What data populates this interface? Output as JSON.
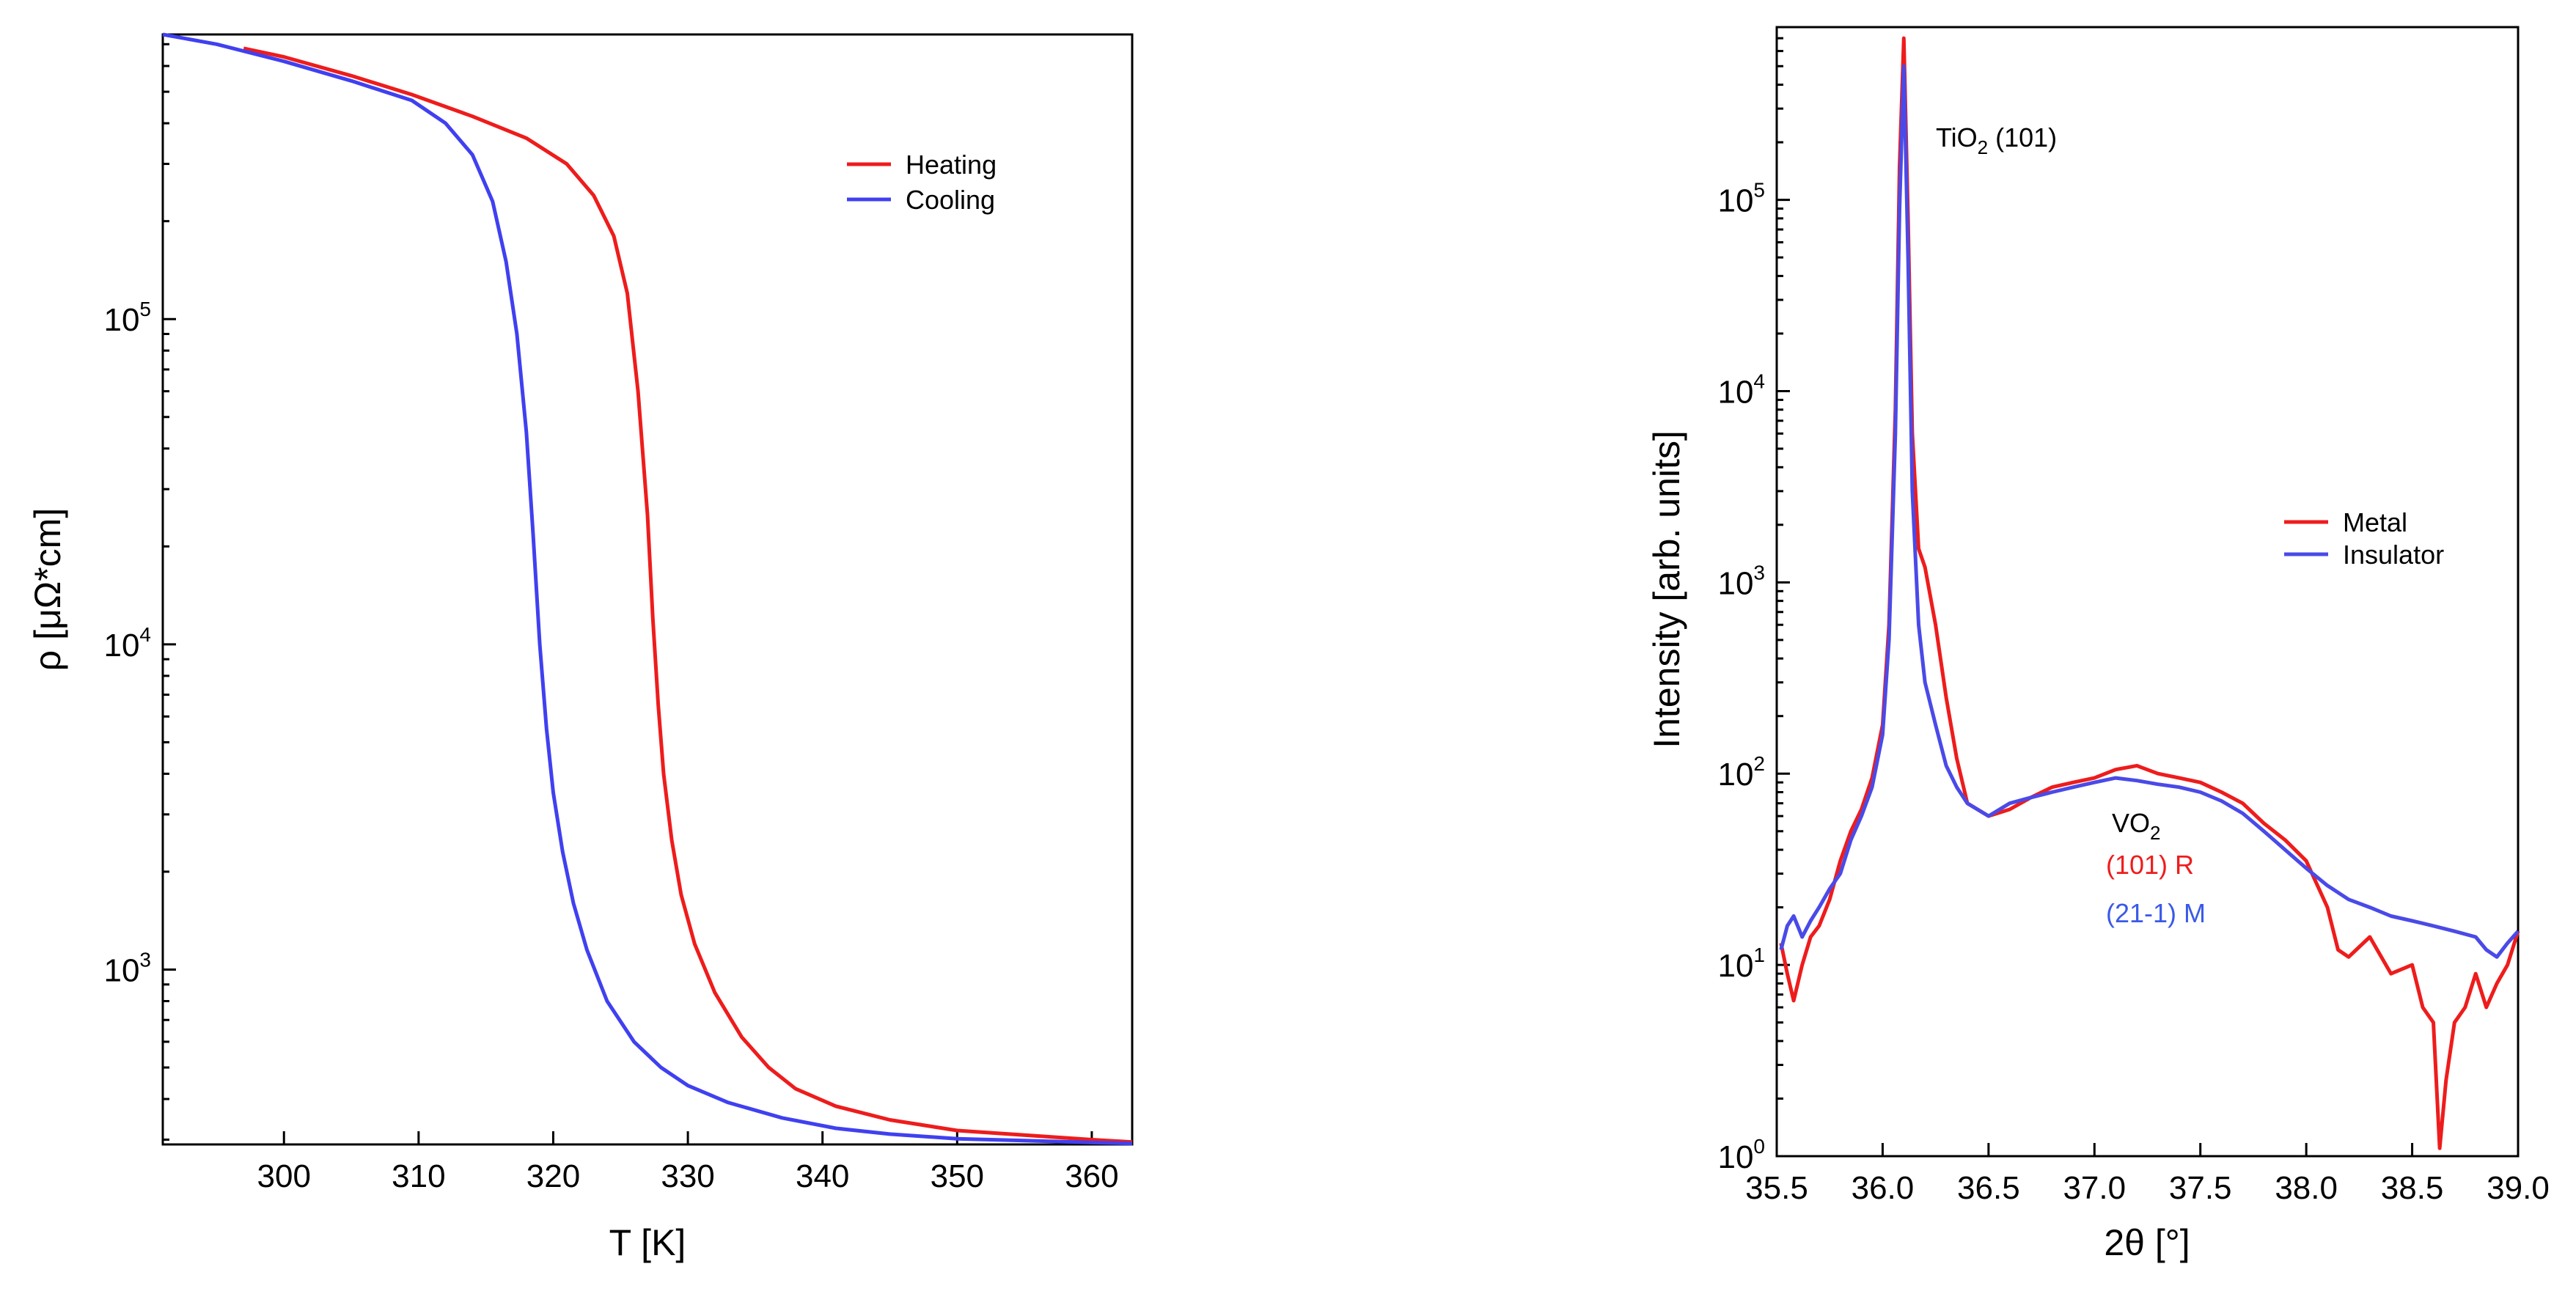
{
  "chart_data": [
    {
      "type": "line",
      "title": "",
      "xlabel": "T [K]",
      "ylabel": "ρ [μΩ*cm]",
      "yscale": "log",
      "xlim": [
        291,
        363
      ],
      "ylim": [
        290,
        750000
      ],
      "xticks": [
        300,
        310,
        320,
        330,
        340,
        350,
        360
      ],
      "yticks": [
        {
          "value": 1000,
          "base": "10",
          "exp": "3"
        },
        {
          "value": 10000,
          "base": "10",
          "exp": "4"
        },
        {
          "value": 100000,
          "base": "10",
          "exp": "5"
        }
      ],
      "legend": {
        "position": "top-right"
      },
      "series": [
        {
          "name": "Heating",
          "color": "#ee1c1c",
          "x": [
            297,
            300,
            305,
            309.5,
            314,
            318,
            321,
            323,
            324.5,
            325.5,
            326.3,
            327,
            327.4,
            327.8,
            328.2,
            328.8,
            329.5,
            330.5,
            332,
            334,
            336,
            338,
            341,
            345,
            350,
            355,
            360,
            363
          ],
          "y": [
            680000,
            640000,
            560000,
            490000,
            420000,
            360000,
            300000,
            240000,
            180000,
            120000,
            60000,
            25000,
            12000,
            6500,
            4000,
            2500,
            1700,
            1200,
            850,
            620,
            500,
            430,
            380,
            345,
            320,
            310,
            300,
            295
          ]
        },
        {
          "name": "Cooling",
          "color": "#4040f0",
          "x": [
            291,
            295,
            300,
            305,
            309.5,
            312,
            314,
            315.5,
            316.5,
            317.3,
            318,
            318.5,
            319,
            319.5,
            320,
            320.7,
            321.5,
            322.5,
            324,
            326,
            328,
            330,
            333,
            337,
            341,
            345,
            350,
            355,
            360,
            363
          ],
          "y": [
            750000,
            700000,
            620000,
            540000,
            470000,
            400000,
            320000,
            230000,
            150000,
            90000,
            45000,
            22000,
            10000,
            5500,
            3500,
            2300,
            1600,
            1150,
            800,
            600,
            500,
            440,
            390,
            350,
            325,
            312,
            302,
            298,
            294,
            292
          ]
        }
      ]
    },
    {
      "type": "line",
      "title": "",
      "xlabel": "2θ [°]",
      "ylabel": "Intensity [arb. units]",
      "yscale": "log",
      "xlim": [
        35.5,
        39.0
      ],
      "ylim": [
        1,
        800000
      ],
      "xticks": [
        "35.5",
        "36.0",
        "36.5",
        "37.0",
        "37.5",
        "38.0",
        "38.5",
        "39.0"
      ],
      "yticks": [
        {
          "value": 1,
          "base": "10",
          "exp": "0"
        },
        {
          "value": 10,
          "base": "10",
          "exp": "1"
        },
        {
          "value": 100,
          "base": "10",
          "exp": "2"
        },
        {
          "value": 1000,
          "base": "10",
          "exp": "3"
        },
        {
          "value": 10000,
          "base": "10",
          "exp": "4"
        },
        {
          "value": 100000,
          "base": "10",
          "exp": "5"
        }
      ],
      "legend": {
        "position": "center-right"
      },
      "annotations": {
        "peak_label": {
          "base": "TiO",
          "sub": "2",
          "rest": " (101)"
        },
        "vo2_label": {
          "base": "VO",
          "sub": "2"
        },
        "metal_phase": "(101) R",
        "insulator_phase": "(21-1) M"
      },
      "series": [
        {
          "name": "Metal",
          "color": "#ee1c1c",
          "x": [
            35.52,
            35.55,
            35.58,
            35.62,
            35.66,
            35.7,
            35.75,
            35.8,
            35.85,
            35.9,
            35.95,
            36.0,
            36.03,
            36.06,
            36.08,
            36.1,
            36.12,
            36.14,
            36.17,
            36.2,
            36.25,
            36.3,
            36.35,
            36.4,
            36.5,
            36.6,
            36.7,
            36.8,
            36.9,
            37.0,
            37.1,
            37.2,
            37.3,
            37.4,
            37.5,
            37.6,
            37.7,
            37.8,
            37.9,
            38.0,
            38.1,
            38.15,
            38.2,
            38.3,
            38.4,
            38.5,
            38.55,
            38.6,
            38.63,
            38.66,
            38.7,
            38.75,
            38.8,
            38.85,
            38.9,
            38.95,
            39.0
          ],
          "y": [
            13,
            9,
            6.5,
            10,
            14,
            16,
            22,
            35,
            50,
            65,
            95,
            180,
            600,
            8000,
            150000,
            700000,
            80000,
            6000,
            1500,
            1200,
            600,
            250,
            120,
            70,
            60,
            65,
            75,
            85,
            90,
            95,
            105,
            110,
            100,
            95,
            90,
            80,
            70,
            55,
            45,
            35,
            20,
            12,
            11,
            14,
            9,
            10,
            6,
            5,
            1.1,
            2.5,
            5,
            6,
            9,
            6,
            8,
            10,
            15
          ]
        },
        {
          "name": "Insulator",
          "color": "#4a4ae8",
          "x": [
            35.52,
            35.55,
            35.58,
            35.62,
            35.66,
            35.7,
            35.75,
            35.8,
            35.85,
            35.9,
            35.95,
            36.0,
            36.03,
            36.06,
            36.08,
            36.1,
            36.12,
            36.14,
            36.17,
            36.2,
            36.25,
            36.3,
            36.35,
            36.4,
            36.5,
            36.6,
            36.7,
            36.8,
            36.9,
            37.0,
            37.1,
            37.2,
            37.3,
            37.4,
            37.5,
            37.6,
            37.7,
            37.8,
            37.9,
            38.0,
            38.1,
            38.2,
            38.3,
            38.4,
            38.5,
            38.6,
            38.7,
            38.8,
            38.85,
            38.9,
            38.95,
            39.0
          ],
          "y": [
            12,
            16,
            18,
            14,
            17,
            20,
            25,
            30,
            45,
            60,
            85,
            160,
            500,
            6000,
            90000,
            500000,
            50000,
            3000,
            600,
            300,
            180,
            110,
            85,
            70,
            60,
            70,
            75,
            80,
            85,
            90,
            95,
            92,
            88,
            85,
            80,
            72,
            62,
            50,
            40,
            32,
            26,
            22,
            20,
            18,
            17,
            16,
            15,
            14,
            12,
            11,
            13,
            15
          ]
        }
      ]
    }
  ]
}
